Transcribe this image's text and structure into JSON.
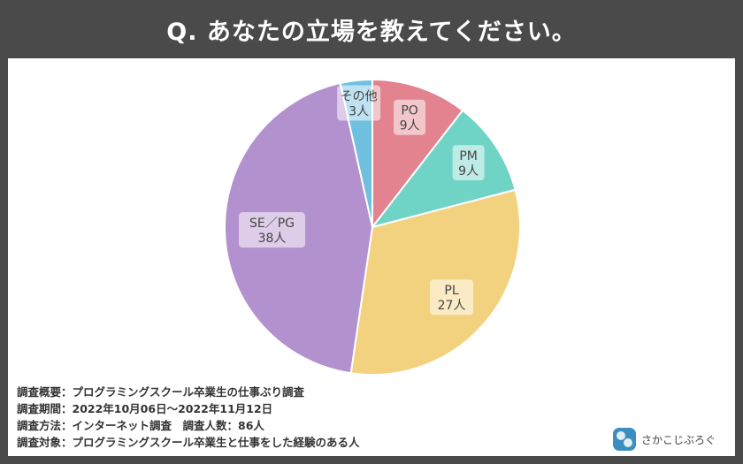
{
  "page": {
    "title": "Q.  あなたの立場を教えてください。"
  },
  "chart_data": {
    "type": "pie",
    "title": "Q.  あなたの立場を教えてください。",
    "slices": [
      {
        "label": "PO",
        "value_text": "9人",
        "value": 9,
        "color": "#e2838f"
      },
      {
        "label": "PM",
        "value_text": "9人",
        "value": 9,
        "color": "#6fd3c5"
      },
      {
        "label": "PL",
        "value_text": "27人",
        "value": 27,
        "color": "#f3d27f"
      },
      {
        "label": "SE／PG",
        "value_text": "38人",
        "value": 38,
        "color": "#b391cf"
      },
      {
        "label": "その他",
        "value_text": "3人",
        "value": 3,
        "color": "#6fbfdf"
      }
    ],
    "start": "top",
    "direction": "clockwise"
  },
  "notes": {
    "overview": "調査概要：プログラミングスクール卒業生の仕事ぶり調査",
    "period": "調査期間：2022年10月06日〜2022年11月12日",
    "method": "調査方法：インターネット調査　調査人数：86人",
    "target": "調査対象：プログラミングスクール卒業生と仕事をした経験のある人"
  },
  "brand": {
    "name": "さかこじぶろぐ"
  }
}
